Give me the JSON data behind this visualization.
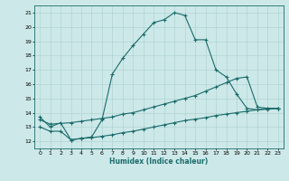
{
  "xlabel": "Humidex (Indice chaleur)",
  "bg_color": "#cde8e8",
  "line_color": "#1a6b6b",
  "grid_color": "#aad0d0",
  "xlim": [
    -0.5,
    23.5
  ],
  "ylim": [
    11.5,
    21.5
  ],
  "yticks": [
    12,
    13,
    14,
    15,
    16,
    17,
    18,
    19,
    20,
    21
  ],
  "xticks": [
    0,
    1,
    2,
    3,
    4,
    5,
    6,
    7,
    8,
    9,
    10,
    11,
    12,
    13,
    14,
    15,
    16,
    17,
    18,
    19,
    20,
    21,
    22,
    23
  ],
  "curve1_x": [
    0,
    1,
    2,
    3,
    4,
    5,
    6,
    7,
    8,
    9,
    10,
    11,
    12,
    13,
    14,
    15,
    16,
    17,
    18,
    19,
    20,
    21,
    22,
    23
  ],
  "curve1_y": [
    13.7,
    13.0,
    13.3,
    12.1,
    12.2,
    12.3,
    13.5,
    16.7,
    17.8,
    18.7,
    19.5,
    20.3,
    20.5,
    21.0,
    20.8,
    19.1,
    19.1,
    17.0,
    16.5,
    15.3,
    14.3,
    14.2,
    14.3,
    14.3
  ],
  "curve2_x": [
    0,
    1,
    3,
    4,
    5,
    6,
    7,
    8,
    9,
    10,
    11,
    12,
    13,
    14,
    15,
    16,
    17,
    18,
    19,
    20,
    21,
    22,
    23
  ],
  "curve2_y": [
    13.5,
    13.2,
    13.3,
    13.4,
    13.5,
    13.6,
    13.7,
    13.9,
    14.0,
    14.2,
    14.4,
    14.6,
    14.8,
    15.0,
    15.2,
    15.5,
    15.8,
    16.1,
    16.4,
    16.5,
    14.4,
    14.3,
    14.3
  ],
  "curve3_x": [
    0,
    1,
    2,
    3,
    4,
    5,
    6,
    7,
    8,
    9,
    10,
    11,
    12,
    13,
    14,
    15,
    16,
    17,
    18,
    19,
    20,
    21,
    22,
    23
  ],
  "curve3_y": [
    13.0,
    12.7,
    12.7,
    12.1,
    12.2,
    12.25,
    12.35,
    12.45,
    12.6,
    12.7,
    12.85,
    13.0,
    13.15,
    13.3,
    13.45,
    13.55,
    13.65,
    13.8,
    13.9,
    14.0,
    14.1,
    14.2,
    14.25,
    14.3
  ]
}
